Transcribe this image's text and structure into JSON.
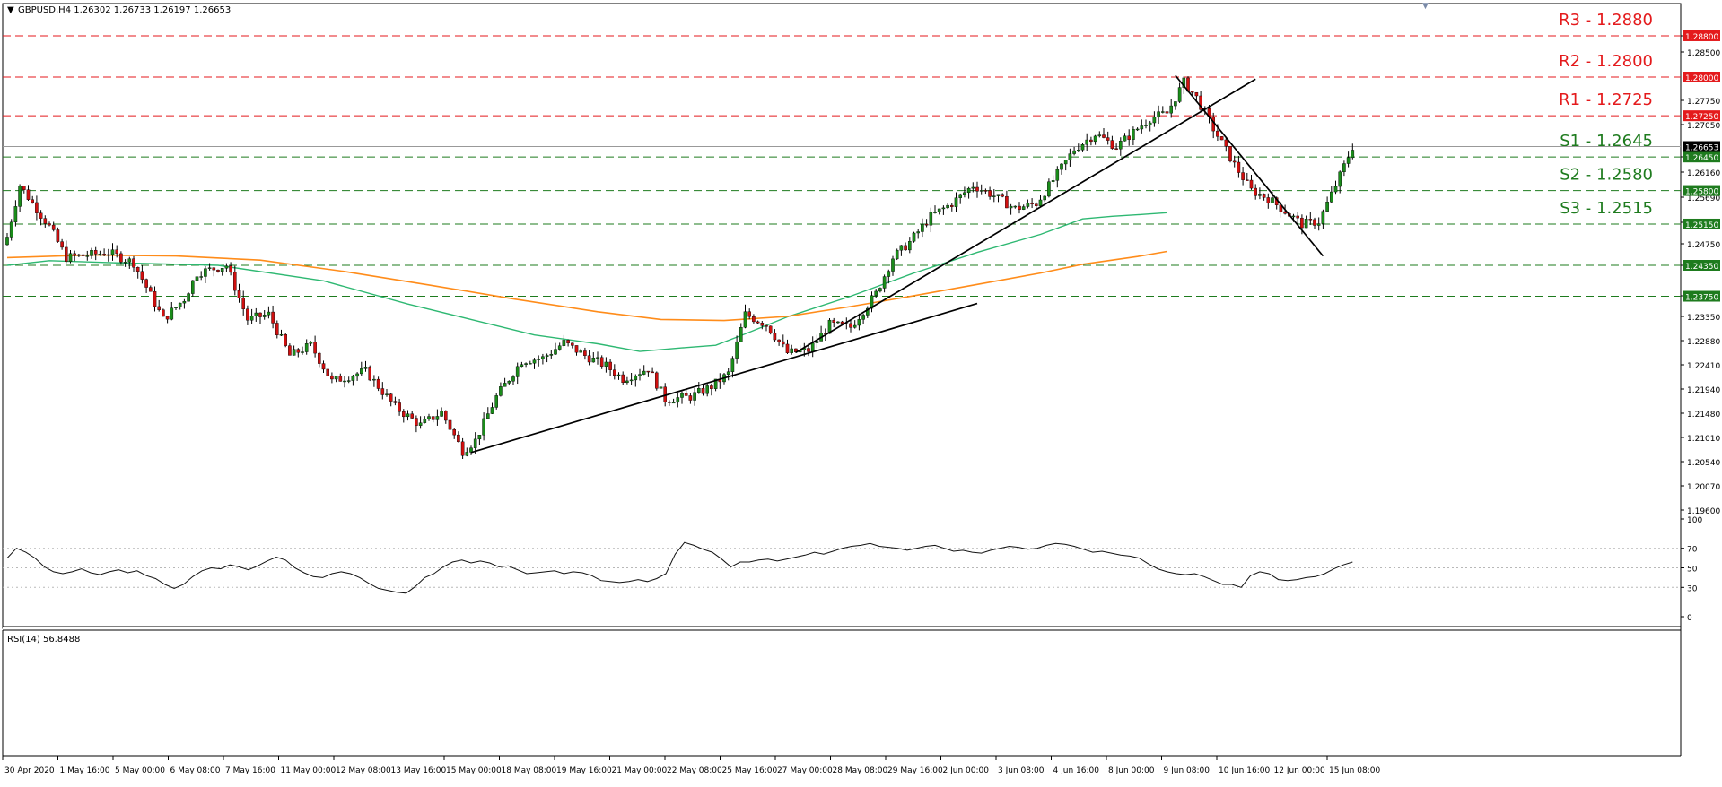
{
  "header": {
    "symbol_text": "GBPUSD,H4  1.26302 1.26733 1.26197 1.26653",
    "rsi_text": "RSI(14) 56.8488"
  },
  "colors": {
    "resistance": "#e41a1c",
    "support": "#1e7b1e",
    "sma_fast": "#2eb872",
    "sma_slow": "#ff8c1a",
    "bull": "#1a8c1a",
    "bear": "#d01010",
    "trend": "#000000",
    "tag_red": "#e41a1c",
    "tag_green": "#1e7b1e"
  },
  "chart_data": {
    "type": "candlestick",
    "price_axis": {
      "ticks": [
        "1.28800",
        "1.28500",
        "1.27750",
        "1.27050",
        "1.26450",
        "1.26160",
        "1.25690",
        "1.25150",
        "1.24750",
        "1.24350",
        "1.23750",
        "1.23350",
        "1.22880",
        "1.22410",
        "1.21940",
        "1.21480",
        "1.21010",
        "1.20540",
        "1.20070",
        "1.19600"
      ],
      "ylim": [
        1.196,
        1.291
      ]
    },
    "time_axis": {
      "labels": [
        "30 Apr 2020",
        "1 May 16:00",
        "5 May 00:00",
        "6 May 08:00",
        "7 May 16:00",
        "11 May 00:00",
        "12 May 08:00",
        "13 May 16:00",
        "15 May 00:00",
        "18 May 08:00",
        "19 May 16:00",
        "21 May 00:00",
        "22 May 08:00",
        "25 May 16:00",
        "27 May 00:00",
        "28 May 08:00",
        "29 May 16:00",
        "2 Jun 00:00",
        "3 Jun 08:00",
        "4 Jun 16:00",
        "8 Jun 00:00",
        "9 Jun 08:00",
        "10 Jun 16:00",
        "12 Jun 00:00",
        "15 Jun 08:00"
      ]
    },
    "levels": [
      {
        "label": "R3 - 1.2880",
        "value": 1.288,
        "tag": "1.28800",
        "type": "resistance"
      },
      {
        "label": "R2 - 1.2800",
        "value": 1.28,
        "tag": "1.28000",
        "type": "resistance"
      },
      {
        "label": "R1 - 1.2725",
        "value": 1.2725,
        "tag": "1.27250",
        "type": "resistance"
      },
      {
        "label": "S1 - 1.2645",
        "value": 1.2645,
        "tag": "1.26450",
        "type": "support"
      },
      {
        "label": "S2 - 1.2580",
        "value": 1.258,
        "tag": "1.25800",
        "type": "support"
      },
      {
        "label": "S3 - 1.2515",
        "value": 1.2515,
        "tag": "1.25150",
        "type": "support"
      },
      {
        "label": "",
        "value": 1.2435,
        "tag": "1.24350",
        "type": "support"
      },
      {
        "label": "",
        "value": 1.2375,
        "tag": "1.23750",
        "type": "support"
      }
    ],
    "current_price": {
      "value": 1.26653,
      "tag": "1.26653"
    },
    "rsi": {
      "period": 14,
      "value": 56.8488,
      "ylim": [
        0,
        100
      ],
      "ticks": [
        "100",
        "70",
        "50",
        "30",
        "0"
      ],
      "levels": [
        70,
        50,
        30
      ],
      "values": [
        60,
        70,
        66,
        60,
        51,
        46,
        44,
        46,
        49,
        45,
        43,
        46,
        48,
        45,
        47,
        42,
        39,
        33,
        29,
        33,
        41,
        47,
        50,
        49,
        53,
        51,
        48,
        52,
        57,
        61,
        58,
        50,
        45,
        41,
        40,
        44,
        46,
        44,
        40,
        34,
        29,
        27,
        25,
        24,
        31,
        40,
        44,
        51,
        56,
        58,
        55,
        57,
        55,
        51,
        52,
        48,
        44,
        45,
        46,
        47,
        44,
        46,
        45,
        42,
        37,
        36,
        35,
        36,
        38,
        36,
        39,
        44,
        64,
        76,
        73,
        69,
        66,
        59,
        51,
        56,
        56,
        58,
        59,
        57,
        59,
        61,
        63,
        66,
        64,
        67,
        70,
        72,
        73,
        75,
        72,
        71,
        70,
        68,
        70,
        72,
        73,
        70,
        67,
        68,
        66,
        65,
        68,
        70,
        72,
        71,
        69,
        70,
        73,
        75,
        74,
        72,
        69,
        66,
        67,
        65,
        63,
        62,
        60,
        54,
        49,
        46,
        44,
        43,
        44,
        41,
        37,
        33,
        33,
        30,
        42,
        46,
        44,
        38,
        37,
        38,
        40,
        41,
        44,
        49,
        53,
        56
      ]
    },
    "sma_fast": [
      [
        0,
        1.2435
      ],
      [
        10,
        1.2444
      ],
      [
        25,
        1.244
      ],
      [
        50,
        1.2435
      ],
      [
        75,
        1.2405
      ],
      [
        95,
        1.236
      ],
      [
        110,
        1.233
      ],
      [
        125,
        1.23
      ],
      [
        140,
        1.2283
      ],
      [
        150,
        1.2268
      ],
      [
        160,
        1.2275
      ],
      [
        168,
        1.228
      ],
      [
        175,
        1.2302
      ],
      [
        185,
        1.2335
      ],
      [
        200,
        1.2375
      ],
      [
        215,
        1.242
      ],
      [
        230,
        1.246
      ],
      [
        245,
        1.2495
      ],
      [
        255,
        1.2525
      ],
      [
        262,
        1.253
      ],
      [
        268,
        1.2533
      ],
      [
        275,
        1.2537
      ]
    ],
    "sma_slow": [
      [
        0,
        1.245
      ],
      [
        20,
        1.2455
      ],
      [
        40,
        1.2453
      ],
      [
        60,
        1.2445
      ],
      [
        80,
        1.2423
      ],
      [
        100,
        1.2397
      ],
      [
        120,
        1.237
      ],
      [
        140,
        1.2345
      ],
      [
        155,
        1.233
      ],
      [
        170,
        1.2328
      ],
      [
        185,
        1.2336
      ],
      [
        200,
        1.2355
      ],
      [
        215,
        1.2376
      ],
      [
        230,
        1.2398
      ],
      [
        245,
        1.242
      ],
      [
        255,
        1.2437
      ],
      [
        262,
        1.2445
      ],
      [
        268,
        1.2452
      ],
      [
        275,
        1.2462
      ]
    ],
    "trendlines": [
      [
        [
          110,
          1.2072
        ],
        [
          230,
          1.2361
        ]
      ],
      [
        [
          187,
          1.2266
        ],
        [
          296,
          1.2796
        ]
      ],
      [
        [
          277,
          1.2803
        ],
        [
          312,
          1.2453
        ]
      ]
    ]
  }
}
